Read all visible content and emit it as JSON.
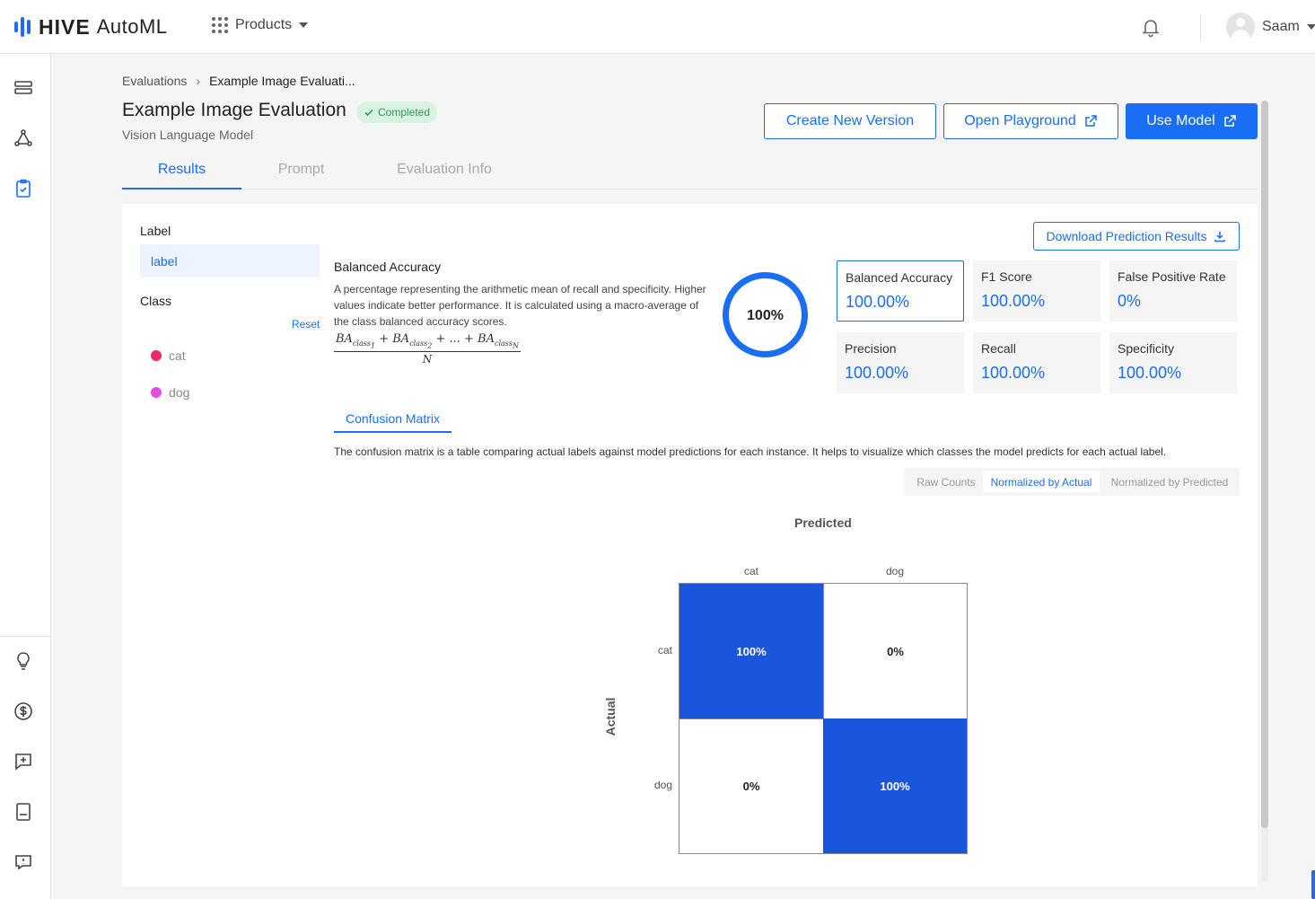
{
  "app": {
    "brand_bold": "HIVE",
    "brand_light": "AutoML",
    "brand_color": "#1a6ef5"
  },
  "header": {
    "products_label": "Products",
    "user_name": "Saam"
  },
  "breadcrumb": {
    "root": "Evaluations",
    "current": "Example Image Evaluati..."
  },
  "page": {
    "title": "Example Image Evaluation",
    "status": "Completed",
    "subtitle": "Vision Language Model"
  },
  "actions": {
    "create_version": "Create New Version",
    "open_playground": "Open Playground",
    "use_model": "Use Model"
  },
  "tabs": [
    {
      "label": "Results",
      "active": true
    },
    {
      "label": "Prompt",
      "active": false
    },
    {
      "label": "Evaluation Info",
      "active": false
    }
  ],
  "filters": {
    "label_heading": "Label",
    "label_value": "label",
    "class_heading": "Class",
    "reset_label": "Reset",
    "classes": [
      {
        "name": "cat",
        "color": "#f0266b"
      },
      {
        "name": "dog",
        "color": "#e84ae4"
      }
    ]
  },
  "metric": {
    "title": "Balanced Accuracy",
    "description": "A percentage representing the arithmetic mean of recall and specificity. Higher values indicate better performance. It is calculated using a macro-average of the class balanced accuracy scores.",
    "formula_denominator": "N",
    "ring_value": "100%",
    "ring_fraction": 1.0
  },
  "download_label": "Download Prediction Results",
  "metric_cards": [
    {
      "name": "Balanced Accuracy",
      "value": "100.00%",
      "selected": true
    },
    {
      "name": "F1 Score",
      "value": "100.00%",
      "selected": false
    },
    {
      "name": "False Positive Rate",
      "value": "0%",
      "selected": false
    },
    {
      "name": "Precision",
      "value": "100.00%",
      "selected": false
    },
    {
      "name": "Recall",
      "value": "100.00%",
      "selected": false
    },
    {
      "name": "Specificity",
      "value": "100.00%",
      "selected": false
    }
  ],
  "confusion": {
    "tab_label": "Confusion Matrix",
    "description": "The confusion matrix is a table comparing actual labels against model predictions for each instance. It helps to visualize which classes the model predicts for each actual label.",
    "modes": [
      "Raw Counts",
      "Normalized by Actual",
      "Normalized by Predicted"
    ],
    "active_mode": "Normalized by Actual",
    "predicted_label": "Predicted",
    "actual_label": "Actual",
    "columns": [
      "cat",
      "dog"
    ],
    "rows": [
      "cat",
      "dog"
    ],
    "cells": [
      [
        "100%",
        "0%"
      ],
      [
        "0%",
        "100%"
      ]
    ],
    "high_color": "#1a56db"
  }
}
